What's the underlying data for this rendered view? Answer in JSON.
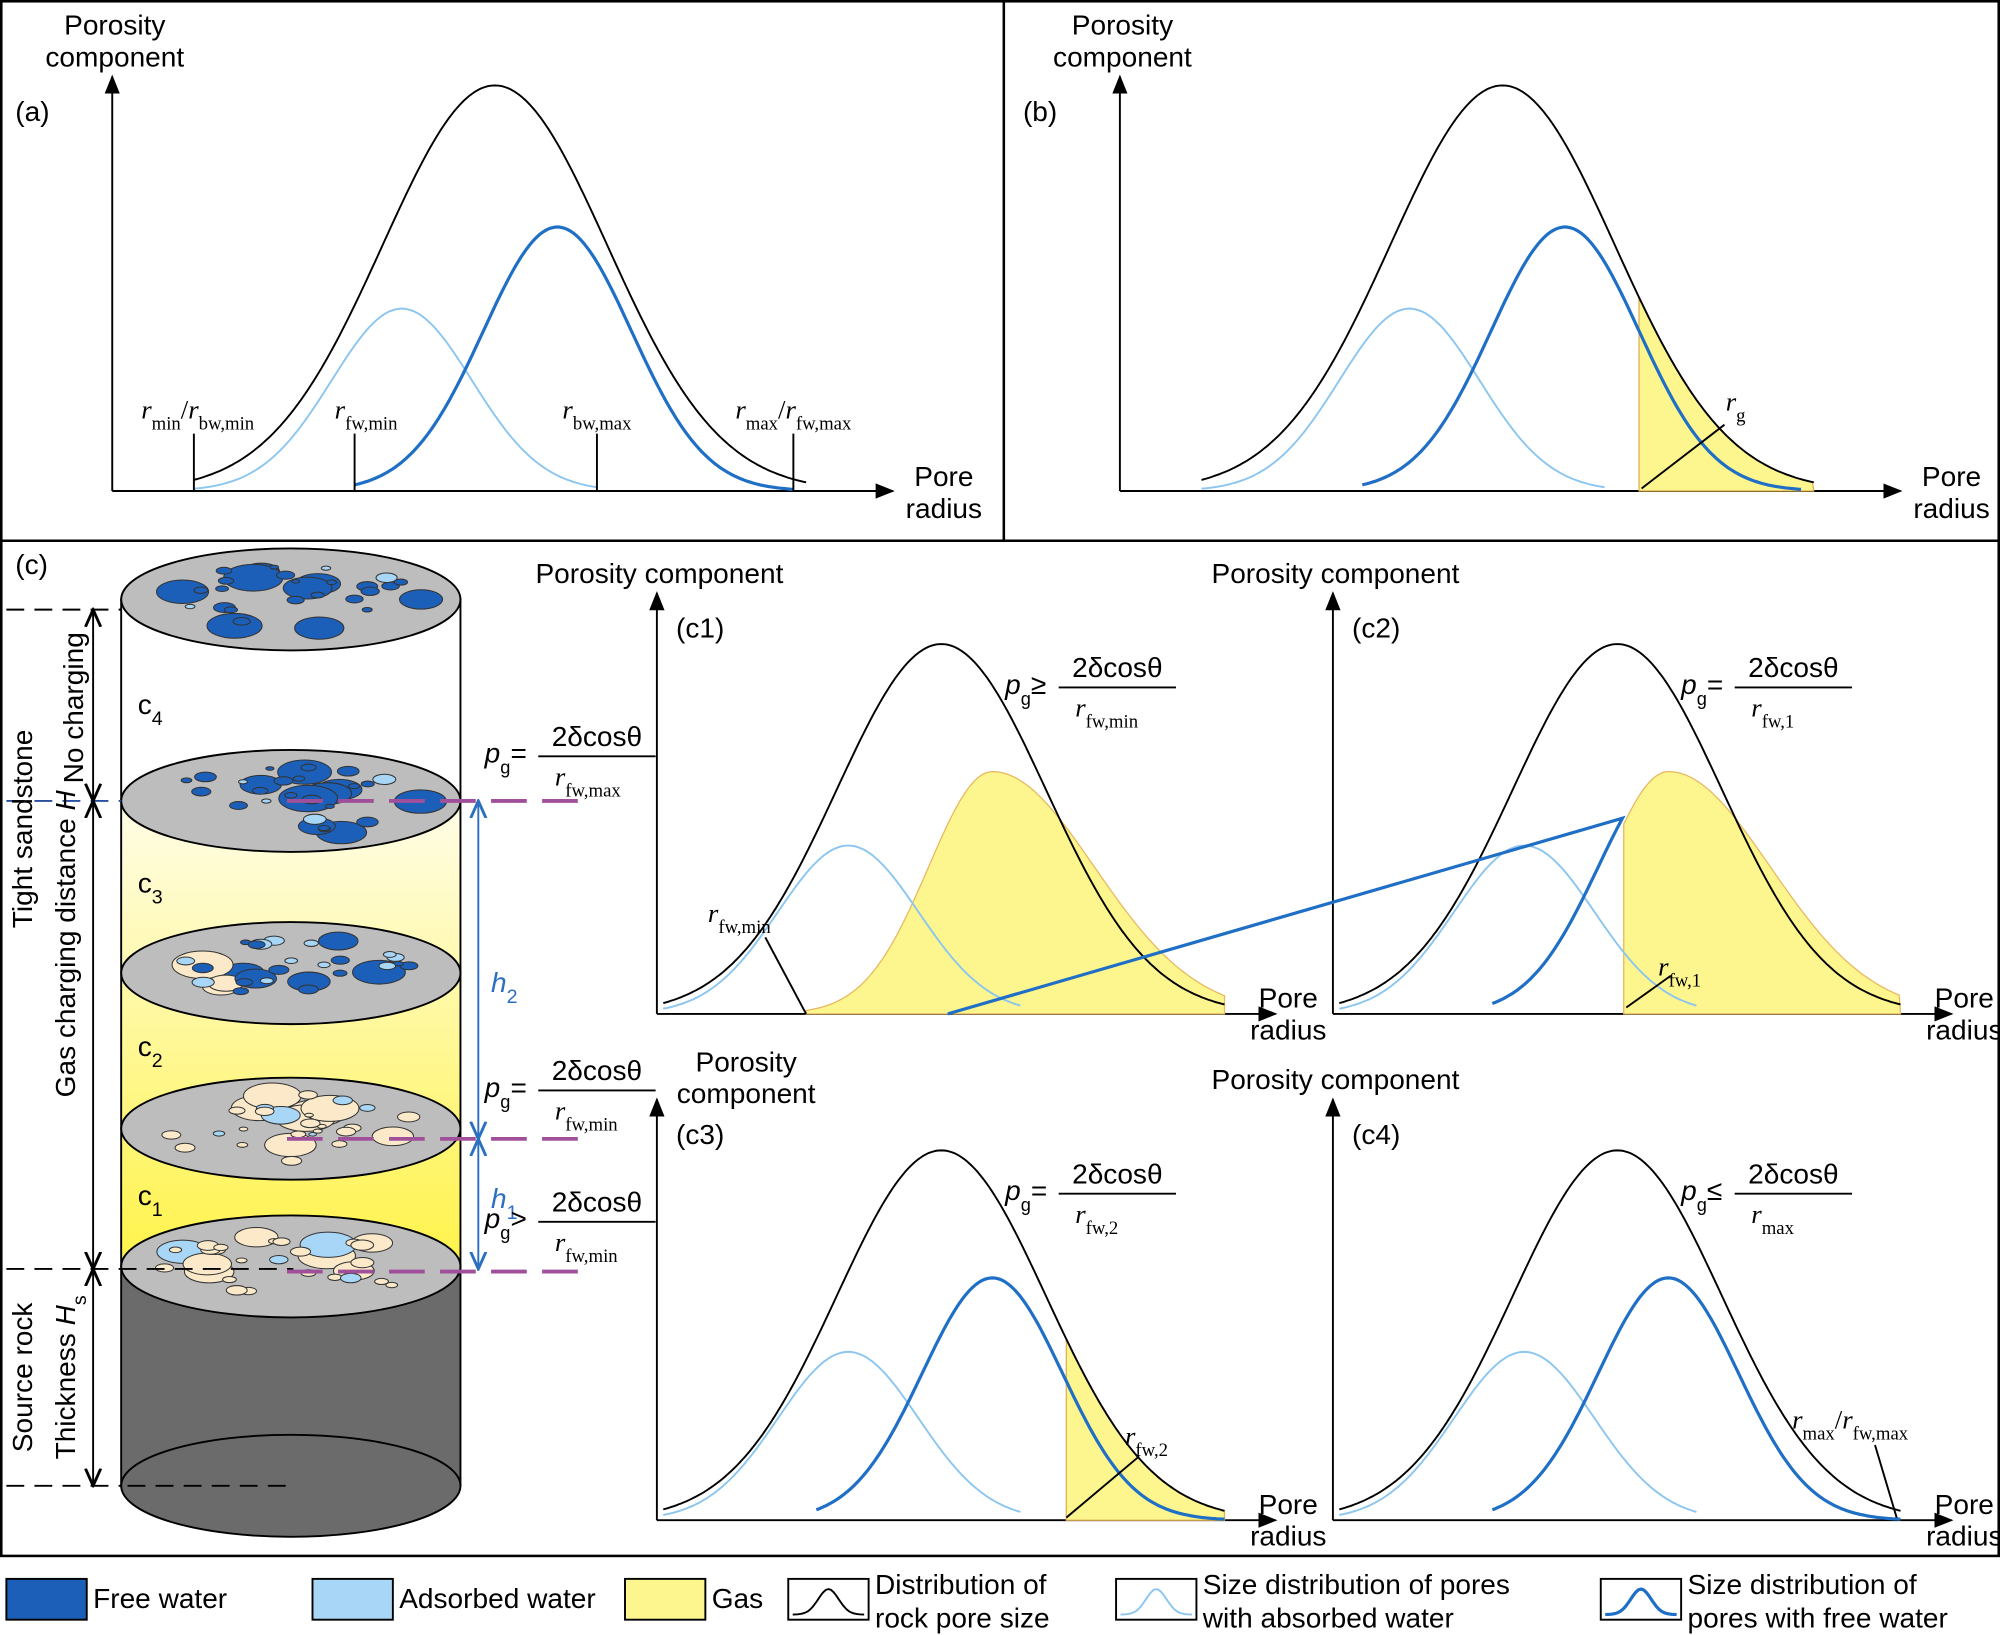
{
  "panel_a": {
    "label": "(a)",
    "y_axis_title": [
      "Porosity",
      "component"
    ],
    "x_axis_title": [
      "Pore",
      "radius"
    ],
    "markers": [
      [
        {
          "it": "r"
        },
        {
          "sub": "min"
        },
        {
          "t": "/"
        },
        {
          "it": "r"
        },
        {
          "sub": "bw,min"
        }
      ],
      [
        {
          "it": "r"
        },
        {
          "sub": "fw,min"
        }
      ],
      [
        {
          "it": "r"
        },
        {
          "sub": "bw,max"
        }
      ],
      [
        {
          "it": "r"
        },
        {
          "sub": "max"
        },
        {
          "t": "/"
        },
        {
          "it": "r"
        },
        {
          "sub": "fw,max"
        }
      ]
    ]
  },
  "panel_b": {
    "label": "(b)",
    "y_axis_title": [
      "Porosity",
      "component"
    ],
    "x_axis_title": [
      "Pore",
      "radius"
    ],
    "marker": [
      {
        "it": "r"
      },
      {
        "sub": "g"
      }
    ]
  },
  "panel_c": {
    "label": "(c)",
    "column": {
      "left_titles": [
        [
          {
            "t": "Tight sandstone"
          }
        ],
        [
          {
            "t": "Gas charging distance "
          },
          {
            "it": "H"
          }
        ],
        [
          {
            "t": "No charging"
          }
        ],
        [
          {
            "t": "Source rock"
          }
        ],
        [
          {
            "t": "Thickness "
          },
          {
            "it": "H"
          },
          {
            "sub": "s"
          }
        ]
      ],
      "zones": [
        [
          {
            "t": "c"
          },
          {
            "sub": "4"
          }
        ],
        [
          {
            "t": "c"
          },
          {
            "sub": "3"
          }
        ],
        [
          {
            "t": "c"
          },
          {
            "sub": "2"
          }
        ],
        [
          {
            "t": "c"
          },
          {
            "sub": "1"
          }
        ]
      ],
      "heights": [
        [
          {
            "it": "h"
          },
          {
            "sub": "2"
          }
        ],
        [
          {
            "it": "h"
          },
          {
            "sub": "1"
          }
        ]
      ],
      "formulas": [
        {
          "lhs": "p",
          "lhs_sub": "g",
          "rel": "=",
          "num": "2δcosθ",
          "den": [
            {
              "it": "r"
            },
            {
              "sub": "fw,max"
            }
          ]
        },
        {
          "lhs": "p",
          "lhs_sub": "g",
          "rel": "=",
          "num": "2δcosθ",
          "den": [
            {
              "it": "r"
            },
            {
              "sub": "fw,min"
            }
          ]
        },
        {
          "lhs": "p",
          "lhs_sub": "g",
          "rel": ">",
          "num": "2δcosθ",
          "den": [
            {
              "it": "r"
            },
            {
              "sub": "fw,min"
            }
          ]
        }
      ]
    },
    "subpanels": [
      {
        "label": "(c1)",
        "y_axis_title": [
          "Porosity component"
        ],
        "x_axis_title": [
          "Pore",
          "radius"
        ],
        "formula": {
          "lhs": "p",
          "lhs_sub": "g",
          "rel": "≥",
          "num": "2δcosθ",
          "den": [
            {
              "it": "r"
            },
            {
              "sub": "fw,min"
            }
          ]
        },
        "marker": [
          {
            "it": "r"
          },
          {
            "sub": "fw,min"
          }
        ]
      },
      {
        "label": "(c2)",
        "y_axis_title": [
          "Porosity component"
        ],
        "x_axis_title": [
          "Pore",
          "radius"
        ],
        "formula": {
          "lhs": "p",
          "lhs_sub": "g",
          "rel": "=",
          "num": "2δcosθ",
          "den": [
            {
              "it": "r"
            },
            {
              "sub": "fw,1"
            }
          ]
        },
        "marker": [
          {
            "it": "r"
          },
          {
            "sub": "fw,1"
          }
        ]
      },
      {
        "label": "(c3)",
        "y_axis_title": [
          "Porosity",
          "component"
        ],
        "x_axis_title": [
          "Pore",
          "radius"
        ],
        "formula": {
          "lhs": "p",
          "lhs_sub": "g",
          "rel": "=",
          "num": "2δcosθ",
          "den": [
            {
              "it": "r"
            },
            {
              "sub": "fw,2"
            }
          ]
        },
        "marker": [
          {
            "it": "r"
          },
          {
            "sub": "fw,2"
          }
        ]
      },
      {
        "label": "(c4)",
        "y_axis_title": [
          "Porosity component"
        ],
        "x_axis_title": [
          "Pore",
          "radius"
        ],
        "formula": {
          "lhs": "p",
          "lhs_sub": "g",
          "rel": "≤",
          "num": "2δcosθ",
          "den": [
            {
              "it": "r"
            },
            {
              "sub": "max"
            }
          ]
        },
        "marker": [
          {
            "it": "r"
          },
          {
            "sub": "max"
          },
          {
            "t": "/"
          },
          {
            "it": "r"
          },
          {
            "sub": "fw,max"
          }
        ]
      }
    ]
  },
  "legend": [
    {
      "label": [
        "Free water"
      ]
    },
    {
      "label": [
        "Adsorbed water"
      ]
    },
    {
      "label": [
        "Gas"
      ]
    },
    {
      "label": [
        "Distribution of",
        "rock pore size"
      ]
    },
    {
      "label": [
        "Size distribution of pores",
        "with absorbed water"
      ]
    },
    {
      "label": [
        "Size distribution of",
        "pores with free water"
      ]
    }
  ]
}
